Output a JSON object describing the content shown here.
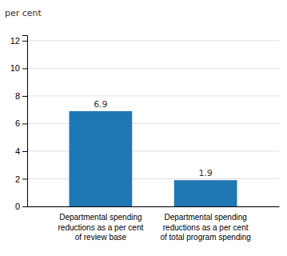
{
  "chart_data": {
    "type": "bar",
    "ylabel": "per cent",
    "categories": [
      "Departmental spending\nreductions as a per cent\nof review base",
      "Departmental spending\nreductions as a per cent\nof total program spending"
    ],
    "values": [
      6.9,
      1.9
    ],
    "value_labels": [
      "6.9",
      "1.9"
    ],
    "data_labels": true,
    "ylim": [
      0,
      12.4
    ],
    "yticks": [
      0,
      2,
      4,
      6,
      8,
      10,
      12
    ],
    "grid": true
  }
}
